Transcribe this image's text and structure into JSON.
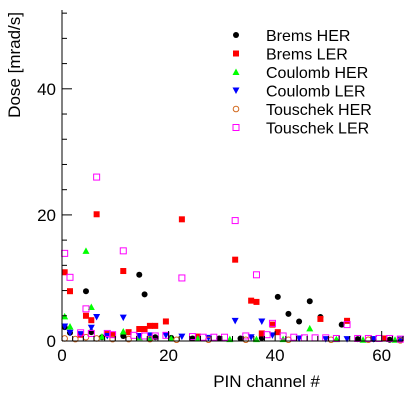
{
  "chart_data": {
    "type": "scatter",
    "title": "",
    "xlabel": "PIN channel #",
    "ylabel": "Dose [mrad/s]",
    "xlim": [
      0,
      64
    ],
    "ylim": [
      0,
      52.5
    ],
    "x_ticks": [
      "0",
      "20",
      "40",
      "60"
    ],
    "y_ticks": [
      "0",
      "20",
      "40"
    ],
    "x_tick_values": [
      0,
      20,
      40,
      60
    ],
    "y_tick_values": [
      0,
      20,
      40
    ],
    "grid": false,
    "legend_position": "top-right",
    "series": [
      {
        "name": "Brems HER",
        "marker": "circle-filled",
        "color": "#000000",
        "points": [
          [
            0.5,
            2.2
          ],
          [
            1.5,
            1.3
          ],
          [
            4.5,
            7.9
          ],
          [
            5.5,
            1.4
          ],
          [
            7.5,
            0.6
          ],
          [
            11.5,
            0.8
          ],
          [
            14.5,
            10.5
          ],
          [
            15.5,
            7.4
          ],
          [
            17.5,
            0.6
          ],
          [
            20.5,
            0.5
          ],
          [
            24.5,
            0.4
          ],
          [
            29.5,
            0.4
          ],
          [
            33.5,
            0.4
          ],
          [
            37.5,
            0.5
          ],
          [
            40.5,
            7.0
          ],
          [
            42.5,
            4.3
          ],
          [
            44.5,
            3.1
          ],
          [
            46.5,
            6.3
          ],
          [
            48.5,
            3.8
          ],
          [
            52.5,
            2.6
          ],
          [
            55.5,
            0.3
          ],
          [
            58.5,
            0.3
          ],
          [
            61.5,
            0.2
          ],
          [
            63.5,
            0.2
          ]
        ]
      },
      {
        "name": "Brems LER",
        "marker": "square-filled",
        "color": "#ff0000",
        "points": [
          [
            0.5,
            10.9
          ],
          [
            1.5,
            7.9
          ],
          [
            3.5,
            1.0
          ],
          [
            4.5,
            4.0
          ],
          [
            5.5,
            3.3
          ],
          [
            6.5,
            20.1
          ],
          [
            8.5,
            1.1
          ],
          [
            9.5,
            1.0
          ],
          [
            11.5,
            11.1
          ],
          [
            12.5,
            1.4
          ],
          [
            14.5,
            1.9
          ],
          [
            15.5,
            1.9
          ],
          [
            16.5,
            2.4
          ],
          [
            17.5,
            2.4
          ],
          [
            19.5,
            3.1
          ],
          [
            22.5,
            19.3
          ],
          [
            25.5,
            0.7
          ],
          [
            32.5,
            12.9
          ],
          [
            35.5,
            6.4
          ],
          [
            36.5,
            6.2
          ],
          [
            37.5,
            1.2
          ],
          [
            39.5,
            2.6
          ],
          [
            40.5,
            1.4
          ],
          [
            48.5,
            3.5
          ],
          [
            53.5,
            3.2
          ],
          [
            60.5,
            0.4
          ]
        ]
      },
      {
        "name": "Coulomb HER",
        "marker": "triangle-up",
        "color": "#00ff00",
        "points": [
          [
            0.5,
            3.9
          ],
          [
            1.5,
            2.3
          ],
          [
            4.5,
            14.3
          ],
          [
            5.5,
            5.4
          ],
          [
            7.5,
            0.7
          ],
          [
            11.5,
            1.5
          ],
          [
            14.5,
            0.6
          ],
          [
            16.5,
            0.5
          ],
          [
            20.5,
            0.4
          ],
          [
            25.5,
            0.4
          ],
          [
            31.5,
            0.3
          ],
          [
            36.5,
            0.3
          ],
          [
            41.5,
            0.3
          ],
          [
            46.5,
            2.0
          ],
          [
            51.5,
            0.3
          ],
          [
            56.5,
            0.2
          ],
          [
            62.5,
            0.2
          ]
        ]
      },
      {
        "name": "Coulomb LER",
        "marker": "triangle-down",
        "color": "#0000ff",
        "points": [
          [
            0.5,
            2.3
          ],
          [
            1.5,
            1.3
          ],
          [
            3.5,
            1.1
          ],
          [
            5.5,
            2.1
          ],
          [
            6.5,
            3.8
          ],
          [
            8.5,
            0.8
          ],
          [
            11.5,
            3.7
          ],
          [
            14.5,
            0.8
          ],
          [
            16.5,
            0.9
          ],
          [
            19.5,
            0.9
          ],
          [
            22.5,
            0.7
          ],
          [
            27.5,
            0.5
          ],
          [
            32.5,
            3.2
          ],
          [
            35.5,
            0.6
          ],
          [
            37.5,
            3.1
          ],
          [
            39.5,
            0.9
          ],
          [
            44.5,
            0.4
          ],
          [
            49.5,
            0.3
          ],
          [
            53.5,
            0.3
          ],
          [
            58.5,
            0.3
          ],
          [
            63.5,
            0.2
          ]
        ]
      },
      {
        "name": "Touschek HER",
        "marker": "circle-open",
        "color": "#d2691e",
        "points": [
          [
            0.5,
            0.4
          ],
          [
            2.5,
            0.3
          ],
          [
            4.5,
            0.6
          ],
          [
            6.5,
            0.4
          ],
          [
            9.5,
            0.3
          ],
          [
            12.5,
            0.3
          ],
          [
            16.5,
            0.3
          ],
          [
            21.5,
            0.2
          ],
          [
            27.5,
            0.2
          ],
          [
            34.5,
            0.2
          ],
          [
            42.5,
            0.2
          ],
          [
            50.5,
            0.2
          ],
          [
            57.5,
            0.2
          ],
          [
            63.5,
            0.1
          ]
        ]
      },
      {
        "name": "Touschek LER",
        "marker": "square-open",
        "color": "#ff00ff",
        "points": [
          [
            0.5,
            13.9
          ],
          [
            1.5,
            10.1
          ],
          [
            3.5,
            1.3
          ],
          [
            4.5,
            5.1
          ],
          [
            5.5,
            1.2
          ],
          [
            6.5,
            26.0
          ],
          [
            8.5,
            1.2
          ],
          [
            9.5,
            1.0
          ],
          [
            11.5,
            14.3
          ],
          [
            13.5,
            0.9
          ],
          [
            15.5,
            0.8
          ],
          [
            17.5,
            0.8
          ],
          [
            19.5,
            0.9
          ],
          [
            22.5,
            10.0
          ],
          [
            24.5,
            0.7
          ],
          [
            26.5,
            0.6
          ],
          [
            28.5,
            0.6
          ],
          [
            30.5,
            0.6
          ],
          [
            32.5,
            19.1
          ],
          [
            34.5,
            0.8
          ],
          [
            36.5,
            10.5
          ],
          [
            38.5,
            1.0
          ],
          [
            39.5,
            2.8
          ],
          [
            41.5,
            0.8
          ],
          [
            43.5,
            0.6
          ],
          [
            45.5,
            0.5
          ],
          [
            47.5,
            0.5
          ],
          [
            49.5,
            0.5
          ],
          [
            51.5,
            0.4
          ],
          [
            53.5,
            2.6
          ],
          [
            55.5,
            0.4
          ],
          [
            57.5,
            0.4
          ],
          [
            59.5,
            0.4
          ],
          [
            61.5,
            0.4
          ],
          [
            63.5,
            0.3
          ]
        ]
      }
    ]
  }
}
